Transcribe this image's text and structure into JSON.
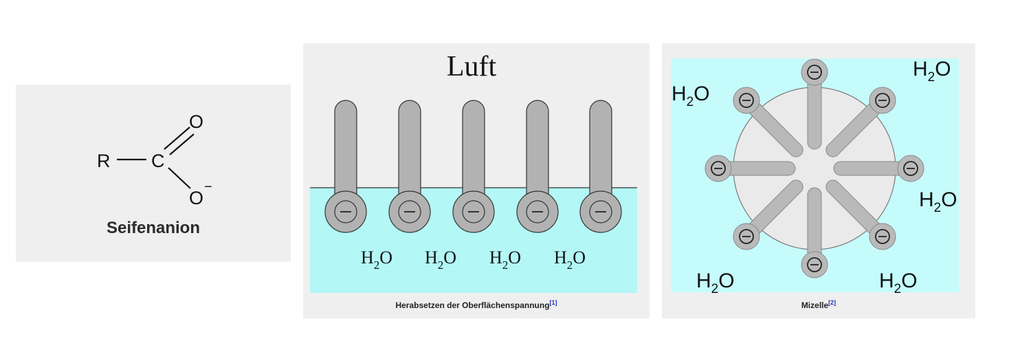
{
  "structure": {
    "r_label": "R",
    "c_label": "C",
    "o_top": "O",
    "o_bottom": "O",
    "charge": "−",
    "caption": "Seifenanion"
  },
  "surface": {
    "air_label": "Luft",
    "water_formula": "H₂O",
    "water_labels": [
      "H",
      "H",
      "H",
      "H"
    ],
    "water_sub": "2",
    "water_o": "O",
    "caption": "Herabsetzen der Oberflächenspannung",
    "ref": "[1]",
    "colors": {
      "water": "#b3f7f6",
      "molecule": "#b2b2b2",
      "outline": "#333333"
    }
  },
  "micelle": {
    "water_h": "H",
    "water_sub": "2",
    "water_o": "O",
    "caption": "Mizelle",
    "ref": "[2]",
    "colors": {
      "water": "#c6fbfb",
      "core": "#eaeaea",
      "molecule": "#b9b9b9"
    }
  }
}
